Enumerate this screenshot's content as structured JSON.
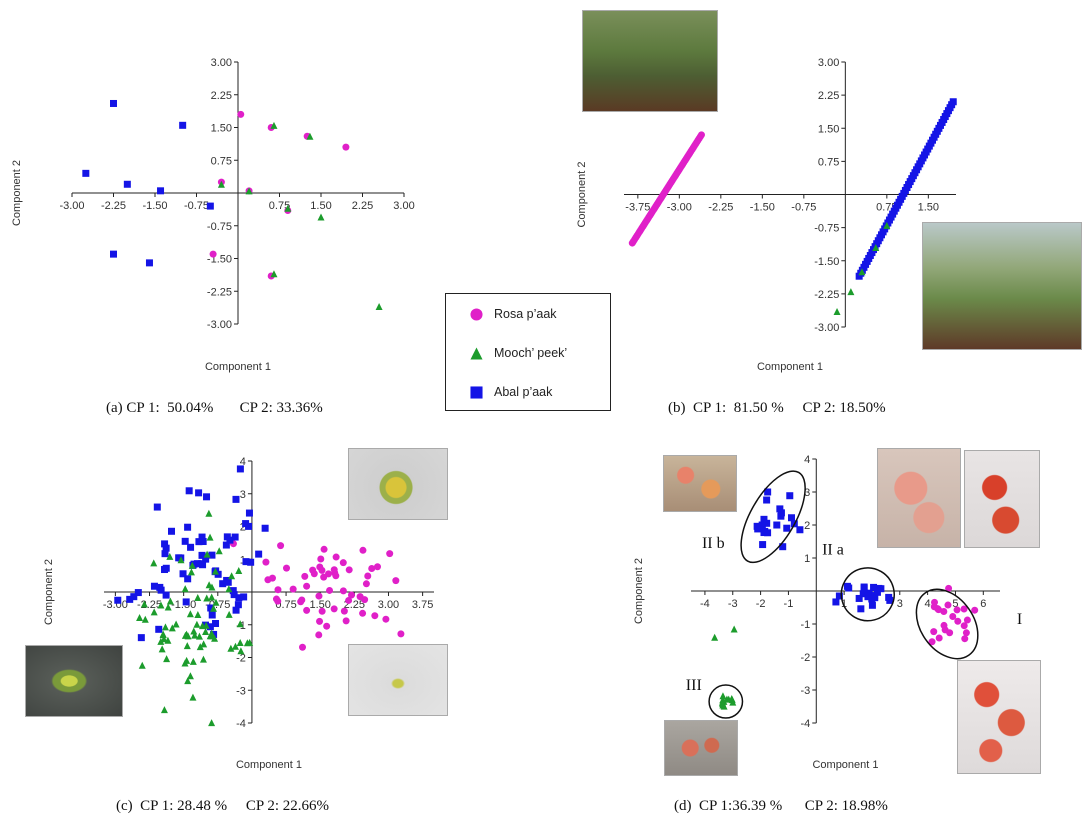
{
  "figure": {
    "legend": [
      {
        "label": "Rosa p’aak",
        "color": "#e020c8",
        "marker": "circle"
      },
      {
        "label": "Mooch’ peek’",
        "color": "#1c9c2c",
        "marker": "triangle"
      },
      {
        "label": "Abal p’aak",
        "color": "#1414e6",
        "marker": "square"
      }
    ],
    "photos": {
      "b_top": "plants-photo",
      "b_right": "plants-photo",
      "c_top": "flower-photo",
      "c_left": "flower-photo",
      "c_bottom": "flower-photo",
      "d_topleft": "fruit-photo",
      "d_topright1": "fruit-photo",
      "d_topright2": "fruit-photo",
      "d_bottomleft": "fruit-photo",
      "d_bottomright": "fruit-photo"
    }
  },
  "chart_data": [
    {
      "panel": "a",
      "type": "scatter",
      "xlabel": "Component 1",
      "ylabel": "Component 2",
      "caption": "(a) CP 1:  50.04%       CP 2: 33.36%",
      "xlim": [
        -3.0,
        3.0
      ],
      "ylim": [
        -3.0,
        3.0
      ],
      "xticks": [
        "-3.00",
        "-2.25",
        "-1.50",
        "-0.75",
        "0.75",
        "1.50",
        "2.25",
        "3.00"
      ],
      "yticks": [
        "3.00",
        "2.25",
        "1.50",
        "0.75",
        "-0.75",
        "-1.50",
        "-2.25",
        "-3.00"
      ],
      "series": [
        {
          "name": "Rosa p’aak",
          "color": "#e020c8",
          "marker": "circle",
          "points": [
            [
              0.05,
              1.8
            ],
            [
              0.6,
              1.5
            ],
            [
              1.25,
              1.3
            ],
            [
              1.95,
              1.05
            ],
            [
              -0.3,
              0.25
            ],
            [
              0.2,
              0.05
            ],
            [
              0.9,
              -0.4
            ],
            [
              -0.45,
              -1.4
            ],
            [
              0.6,
              -1.9
            ]
          ]
        },
        {
          "name": "Mooch’ peek’",
          "color": "#1c9c2c",
          "marker": "triangle",
          "points": [
            [
              0.65,
              1.55
            ],
            [
              1.3,
              1.3
            ],
            [
              -0.3,
              0.2
            ],
            [
              0.2,
              0.05
            ],
            [
              0.9,
              -0.35
            ],
            [
              1.5,
              -0.55
            ],
            [
              0.65,
              -1.85
            ],
            [
              2.55,
              -2.6
            ]
          ]
        },
        {
          "name": "Abal p’aak",
          "color": "#1414e6",
          "marker": "square",
          "points": [
            [
              -2.25,
              2.05
            ],
            [
              -1.0,
              1.55
            ],
            [
              -2.75,
              0.45
            ],
            [
              -2.0,
              0.2
            ],
            [
              -1.4,
              0.05
            ],
            [
              -0.5,
              -0.3
            ],
            [
              -2.25,
              -1.4
            ],
            [
              -1.6,
              -1.6
            ]
          ]
        }
      ]
    },
    {
      "panel": "b",
      "type": "scatter",
      "xlabel": "Component 1",
      "ylabel": "Component 2",
      "caption": "(b)  CP 1:  81.50 %     CP 2: 18.50%",
      "xlim": [
        -4.0,
        2.0
      ],
      "ylim": [
        -3.0,
        3.0
      ],
      "xticks": [
        "-3.75",
        "-3.00",
        "-2.25",
        "-1.50",
        "-0.75",
        "0.75",
        "1.50"
      ],
      "yticks": [
        "3.00",
        "2.25",
        "1.50",
        "0.75",
        "-0.75",
        "-1.50",
        "-2.25",
        "-3.00"
      ],
      "series": [
        {
          "name": "Rosa p’aak",
          "color": "#e020c8",
          "marker": "circle",
          "line": {
            "x0": -3.85,
            "y0": -1.1,
            "x1": -2.6,
            "y1": 1.35
          }
        },
        {
          "name": "Abal p’aak",
          "color": "#1414e6",
          "marker": "square",
          "line": {
            "x0": 0.25,
            "y0": -1.85,
            "x1": 1.95,
            "y1": 2.1
          }
        },
        {
          "name": "Mooch’ peek’",
          "color": "#1c9c2c",
          "marker": "triangle",
          "points": [
            [
              -0.15,
              -2.65
            ],
            [
              0.1,
              -2.2
            ],
            [
              0.3,
              -1.75
            ],
            [
              0.55,
              -1.2
            ],
            [
              0.75,
              -0.7
            ]
          ]
        }
      ]
    },
    {
      "panel": "c",
      "type": "scatter",
      "xlabel": "Component 1",
      "ylabel": "Component 2",
      "caption": "(c)  CP 1: 28.48 %     CP 2: 22.66%",
      "xlim": [
        -3.25,
        4.0
      ],
      "ylim": [
        -4,
        4
      ],
      "xticks": [
        "-3.00",
        "-2.25",
        "-1.50",
        "-0.75",
        "0.75",
        "1.50",
        "2.25",
        "3.00",
        "3.75"
      ],
      "yticks": [
        "4",
        "3",
        "2",
        "1",
        "-1",
        "-2",
        "-3",
        "-4"
      ],
      "series": [
        {
          "name": "Rosa p’aak",
          "color": "#e020c8",
          "marker": "circle",
          "cluster": {
            "cx": 1.65,
            "cy": 0.0,
            "sx": 0.7,
            "sy": 0.75,
            "n": 55
          }
        },
        {
          "name": "Abal p’aak",
          "color": "#1414e6",
          "marker": "square",
          "cluster": {
            "cx": -1.15,
            "cy": 0.9,
            "sx": 0.75,
            "sy": 1.1,
            "n": 70
          }
        },
        {
          "name": "Mooch’ peek’",
          "color": "#1c9c2c",
          "marker": "triangle",
          "cluster": {
            "cx": -1.15,
            "cy": -0.6,
            "sx": 0.65,
            "sy": 1.1,
            "n": 75
          }
        }
      ]
    },
    {
      "panel": "d",
      "type": "scatter",
      "xlabel": "Component 1",
      "ylabel": "Component 2",
      "caption": "(d)  CP 1:36.39 %      CP 2: 18.98%",
      "xlim": [
        -4.5,
        6.6
      ],
      "ylim": [
        -4,
        4
      ],
      "xticks": [
        "-4",
        "-3",
        "-2",
        "-1",
        "1",
        "2",
        "3",
        "4",
        "5",
        "6"
      ],
      "yticks": [
        "4",
        "3",
        "2",
        "1",
        "-1",
        "-2",
        "-3",
        "-4"
      ],
      "groups": [
        "I",
        "II a",
        "II b",
        "III"
      ],
      "series": [
        {
          "name": "Rosa p’aak",
          "color": "#e020c8",
          "marker": "circle",
          "cluster": {
            "cx": 4.7,
            "cy": -1.0,
            "sx": 0.55,
            "sy": 0.45,
            "n": 22
          }
        },
        {
          "name": "Abal p’aak",
          "color": "#1414e6",
          "marker": "square",
          "cluster": {
            "cx": 1.85,
            "cy": -0.1,
            "sx": 0.45,
            "sy": 0.35,
            "n": 22
          }
        },
        {
          "name": "Abal p’aak",
          "color": "#1414e6",
          "marker": "square",
          "cluster": {
            "cx": -1.55,
            "cy": 2.2,
            "sx": 0.45,
            "sy": 0.55,
            "n": 22
          }
        },
        {
          "name": "Mooch’ peek’",
          "color": "#1c9c2c",
          "marker": "triangle",
          "cluster": {
            "cx": -3.3,
            "cy": -3.35,
            "sx": 0.2,
            "sy": 0.08,
            "n": 12
          }
        },
        {
          "name": "Mooch’ peek’",
          "color": "#1c9c2c",
          "marker": "triangle",
          "points": [
            [
              -3.65,
              -1.4
            ],
            [
              -2.95,
              -1.15
            ]
          ]
        }
      ]
    }
  ]
}
